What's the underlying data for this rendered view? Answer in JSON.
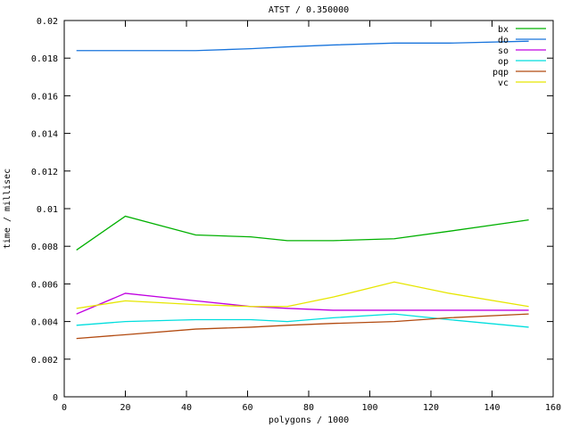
{
  "chart_data": {
    "type": "line",
    "title": "ATST / 0.350000",
    "xlabel": "polygons / 1000",
    "ylabel": "time / millisec",
    "xlim": [
      0,
      160
    ],
    "ylim": [
      0,
      0.02
    ],
    "xtick_step": 20,
    "ytick_step": 0.002,
    "grid": false,
    "legend_position": "top-right-inside",
    "x": [
      4,
      20,
      43,
      61,
      73,
      88,
      108,
      126,
      152
    ],
    "series": [
      {
        "name": "bx",
        "color": "#00b000",
        "values": [
          0.0078,
          0.0096,
          0.0086,
          0.0085,
          0.0083,
          0.0083,
          0.0084,
          0.0088,
          0.0094
        ]
      },
      {
        "name": "do",
        "color": "#1874dc",
        "values": [
          0.0184,
          0.0184,
          0.0184,
          0.0185,
          0.0186,
          0.0187,
          0.0188,
          0.0188,
          0.0189
        ]
      },
      {
        "name": "so",
        "color": "#c000e0",
        "values": [
          0.0044,
          0.0055,
          0.0051,
          0.0048,
          0.0047,
          0.0046,
          0.0046,
          0.0046,
          0.0046
        ]
      },
      {
        "name": "op",
        "color": "#00dede",
        "values": [
          0.0038,
          0.004,
          0.0041,
          0.0041,
          0.004,
          0.0042,
          0.0044,
          0.0041,
          0.0037
        ]
      },
      {
        "name": "pqp",
        "color": "#b24a10",
        "values": [
          0.0031,
          0.0033,
          0.0036,
          0.0037,
          0.0038,
          0.0039,
          0.004,
          0.0042,
          0.0044
        ]
      },
      {
        "name": "vc",
        "color": "#e6e600",
        "values": [
          0.0047,
          0.0051,
          0.0049,
          0.0048,
          0.0048,
          0.0053,
          0.0061,
          0.0055,
          0.0048
        ]
      }
    ]
  },
  "colors": {
    "background": "#ffffff",
    "axis": "#000000",
    "text": "#000000"
  }
}
